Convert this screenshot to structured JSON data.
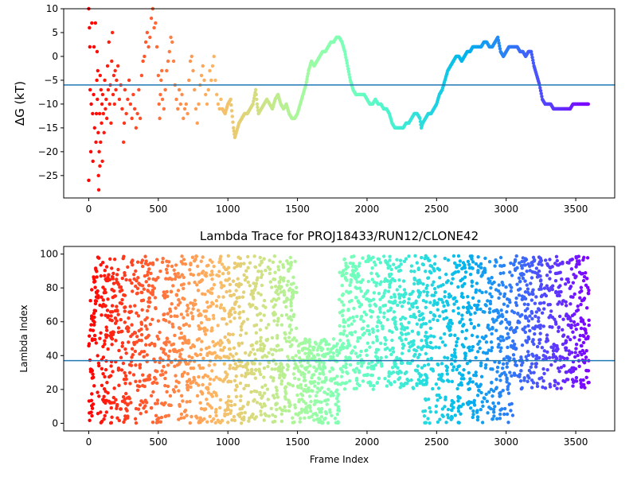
{
  "colors": {
    "hline": "#1f77b4",
    "spine": "#000000",
    "colormap": "rainbow"
  },
  "chart_data": [
    {
      "type": "scatter",
      "title": "",
      "xlabel": "",
      "ylabel": "ΔG (kT)",
      "xlim": [
        -180,
        3780
      ],
      "ylim": [
        -29.7,
        10.0
      ],
      "xticks": [
        0,
        500,
        1000,
        1500,
        2000,
        2500,
        3000,
        3500
      ],
      "xtick_labels": [
        "0",
        "500",
        "1000",
        "1500",
        "2000",
        "2500",
        "3000",
        "3500"
      ],
      "yticks": [
        -25,
        -20,
        -15,
        -10,
        -5,
        0,
        5,
        10
      ],
      "ytick_labels": [
        "−25",
        "−20",
        "−15",
        "−10",
        "−5",
        "0",
        "5",
        "10"
      ],
      "hline": -6.0,
      "color_by": "frame index (rainbow, red at frame 0 to violet at end)",
      "trace_points": [
        [
          0,
          10
        ],
        [
          0,
          -26
        ],
        [
          5,
          6
        ],
        [
          8,
          2
        ],
        [
          10,
          -7
        ],
        [
          15,
          -20
        ],
        [
          18,
          -10
        ],
        [
          22,
          7
        ],
        [
          28,
          -12
        ],
        [
          30,
          -22
        ],
        [
          35,
          -8
        ],
        [
          38,
          2
        ],
        [
          42,
          -15
        ],
        [
          48,
          7
        ],
        [
          52,
          -18
        ],
        [
          55,
          -12
        ],
        [
          58,
          -5
        ],
        [
          60,
          1
        ],
        [
          62,
          -9
        ],
        [
          65,
          -3
        ],
        [
          68,
          -16
        ],
        [
          70,
          -25
        ],
        [
          72,
          -28
        ],
        [
          75,
          -20
        ],
        [
          78,
          -12
        ],
        [
          80,
          -23
        ],
        [
          82,
          -4
        ],
        [
          85,
          -18
        ],
        [
          88,
          -7
        ],
        [
          92,
          -14
        ],
        [
          95,
          -10
        ],
        [
          98,
          -22
        ],
        [
          100,
          -8
        ],
        [
          105,
          -12
        ],
        [
          110,
          -16
        ],
        [
          115,
          -5
        ],
        [
          120,
          -11
        ],
        [
          125,
          -9
        ],
        [
          130,
          -13
        ],
        [
          135,
          -2
        ],
        [
          140,
          -7
        ],
        [
          145,
          3
        ],
        [
          150,
          -10
        ],
        [
          155,
          -6
        ],
        [
          160,
          -14
        ],
        [
          165,
          -1
        ],
        [
          170,
          5
        ],
        [
          175,
          -8
        ],
        [
          180,
          -4
        ],
        [
          185,
          -10
        ],
        [
          190,
          -3
        ],
        [
          195,
          -7
        ],
        [
          200,
          -5
        ],
        [
          210,
          -2
        ],
        [
          220,
          -9
        ],
        [
          230,
          -6
        ],
        [
          240,
          -11
        ],
        [
          250,
          -18
        ],
        [
          255,
          -14
        ],
        [
          260,
          -7
        ],
        [
          270,
          -12
        ],
        [
          280,
          -9
        ],
        [
          290,
          -5
        ],
        [
          300,
          -10
        ],
        [
          310,
          -13
        ],
        [
          320,
          -8
        ],
        [
          330,
          -11
        ],
        [
          340,
          -15
        ],
        [
          350,
          -12
        ],
        [
          360,
          -7
        ],
        [
          370,
          -13
        ],
        [
          380,
          -4
        ],
        [
          390,
          -1
        ],
        [
          400,
          0
        ],
        [
          410,
          3
        ],
        [
          420,
          5
        ],
        [
          430,
          2
        ],
        [
          440,
          4
        ],
        [
          450,
          8
        ],
        [
          460,
          10
        ],
        [
          470,
          6
        ],
        [
          480,
          7
        ],
        [
          490,
          2
        ],
        [
          500,
          -4
        ],
        [
          505,
          -10
        ],
        [
          510,
          -13
        ],
        [
          515,
          -8
        ],
        [
          520,
          -5
        ],
        [
          525,
          -3
        ],
        [
          530,
          -9
        ],
        [
          540,
          -11
        ],
        [
          550,
          -7
        ],
        [
          560,
          -3
        ],
        [
          570,
          -1
        ],
        [
          580,
          1
        ],
        [
          590,
          4
        ],
        [
          600,
          3
        ],
        [
          610,
          -1
        ],
        [
          620,
          -6
        ],
        [
          630,
          -9
        ],
        [
          640,
          -11
        ],
        [
          650,
          -7
        ],
        [
          660,
          -10
        ],
        [
          670,
          -8
        ],
        [
          680,
          -13
        ],
        [
          690,
          -11
        ],
        [
          700,
          -10
        ],
        [
          710,
          -12
        ],
        [
          720,
          -5
        ],
        [
          730,
          -1
        ],
        [
          740,
          0
        ],
        [
          750,
          -3
        ],
        [
          760,
          -7
        ],
        [
          770,
          -11
        ],
        [
          780,
          -14
        ],
        [
          790,
          -10
        ],
        [
          800,
          -6
        ],
        [
          810,
          -4
        ],
        [
          820,
          -2
        ],
        [
          830,
          -5
        ],
        [
          840,
          -8
        ],
        [
          850,
          -10
        ],
        [
          860,
          -7
        ],
        [
          870,
          -3
        ],
        [
          880,
          -5
        ],
        [
          890,
          -2
        ],
        [
          900,
          0
        ],
        [
          910,
          -5
        ],
        [
          920,
          -8
        ],
        [
          930,
          -10
        ],
        [
          940,
          -11
        ],
        [
          950,
          -9
        ],
        [
          960,
          -11
        ],
        [
          980,
          -12
        ],
        [
          1000,
          -10
        ],
        [
          1020,
          -9
        ],
        [
          1040,
          -15
        ],
        [
          1050,
          -17
        ],
        [
          1060,
          -16
        ],
        [
          1080,
          -14
        ],
        [
          1100,
          -13
        ],
        [
          1120,
          -12
        ],
        [
          1140,
          -12
        ],
        [
          1160,
          -11
        ],
        [
          1180,
          -10
        ],
        [
          1200,
          -7
        ],
        [
          1210,
          -10
        ],
        [
          1220,
          -12
        ],
        [
          1240,
          -11
        ],
        [
          1260,
          -10
        ],
        [
          1280,
          -9
        ],
        [
          1300,
          -10
        ],
        [
          1320,
          -11
        ],
        [
          1340,
          -9
        ],
        [
          1360,
          -8
        ],
        [
          1380,
          -10
        ],
        [
          1400,
          -11
        ],
        [
          1420,
          -10
        ],
        [
          1440,
          -12
        ],
        [
          1460,
          -13
        ],
        [
          1480,
          -13
        ],
        [
          1500,
          -12
        ],
        [
          1520,
          -10
        ],
        [
          1540,
          -8
        ],
        [
          1560,
          -6
        ],
        [
          1580,
          -3
        ],
        [
          1600,
          -1
        ],
        [
          1620,
          -2
        ],
        [
          1640,
          -1
        ],
        [
          1660,
          0
        ],
        [
          1680,
          1
        ],
        [
          1700,
          1
        ],
        [
          1720,
          2
        ],
        [
          1740,
          3
        ],
        [
          1760,
          3
        ],
        [
          1780,
          4
        ],
        [
          1800,
          4
        ],
        [
          1820,
          3
        ],
        [
          1840,
          1
        ],
        [
          1860,
          -2
        ],
        [
          1880,
          -5
        ],
        [
          1900,
          -7
        ],
        [
          1920,
          -8
        ],
        [
          1940,
          -8
        ],
        [
          1960,
          -8
        ],
        [
          1980,
          -8
        ],
        [
          2000,
          -9
        ],
        [
          2020,
          -10
        ],
        [
          2040,
          -10
        ],
        [
          2060,
          -9
        ],
        [
          2080,
          -10
        ],
        [
          2100,
          -10
        ],
        [
          2120,
          -11
        ],
        [
          2140,
          -11
        ],
        [
          2160,
          -12
        ],
        [
          2180,
          -14
        ],
        [
          2200,
          -15
        ],
        [
          2220,
          -15
        ],
        [
          2240,
          -15
        ],
        [
          2260,
          -15
        ],
        [
          2280,
          -14
        ],
        [
          2300,
          -14
        ],
        [
          2320,
          -13
        ],
        [
          2340,
          -12
        ],
        [
          2360,
          -12
        ],
        [
          2380,
          -13
        ],
        [
          2390,
          -15
        ],
        [
          2400,
          -14
        ],
        [
          2420,
          -13
        ],
        [
          2440,
          -12
        ],
        [
          2460,
          -12
        ],
        [
          2480,
          -11
        ],
        [
          2500,
          -10
        ],
        [
          2520,
          -8
        ],
        [
          2540,
          -7
        ],
        [
          2560,
          -5
        ],
        [
          2580,
          -3
        ],
        [
          2600,
          -2
        ],
        [
          2620,
          -1
        ],
        [
          2640,
          0
        ],
        [
          2660,
          0
        ],
        [
          2680,
          -1
        ],
        [
          2700,
          0
        ],
        [
          2720,
          1
        ],
        [
          2740,
          1
        ],
        [
          2760,
          2
        ],
        [
          2780,
          2
        ],
        [
          2800,
          2
        ],
        [
          2820,
          2
        ],
        [
          2840,
          3
        ],
        [
          2860,
          3
        ],
        [
          2880,
          2
        ],
        [
          2900,
          2
        ],
        [
          2920,
          3
        ],
        [
          2940,
          4
        ],
        [
          2960,
          1
        ],
        [
          2980,
          0
        ],
        [
          3000,
          1
        ],
        [
          3020,
          2
        ],
        [
          3040,
          2
        ],
        [
          3060,
          2
        ],
        [
          3080,
          2
        ],
        [
          3100,
          1
        ],
        [
          3120,
          1
        ],
        [
          3140,
          0
        ],
        [
          3160,
          1
        ],
        [
          3180,
          1
        ],
        [
          3200,
          -2
        ],
        [
          3220,
          -4
        ],
        [
          3240,
          -6
        ],
        [
          3260,
          -9
        ],
        [
          3280,
          -10
        ],
        [
          3300,
          -10
        ],
        [
          3320,
          -10
        ],
        [
          3340,
          -11
        ],
        [
          3360,
          -11
        ],
        [
          3380,
          -11
        ],
        [
          3400,
          -11
        ],
        [
          3420,
          -11
        ],
        [
          3440,
          -11
        ],
        [
          3460,
          -11
        ],
        [
          3480,
          -10
        ],
        [
          3500,
          -10
        ],
        [
          3520,
          -10
        ],
        [
          3540,
          -10
        ],
        [
          3560,
          -10
        ],
        [
          3580,
          -10
        ],
        [
          3590,
          -10
        ]
      ]
    },
    {
      "type": "scatter",
      "title": "Lambda Trace for PROJ18433/RUN12/CLONE42",
      "xlabel": "Frame Index",
      "ylabel": "Lambda Index",
      "xlim": [
        -180,
        3780
      ],
      "ylim": [
        -4.5,
        104.5
      ],
      "xticks": [
        0,
        500,
        1000,
        1500,
        2000,
        2500,
        3000,
        3500
      ],
      "xtick_labels": [
        "0",
        "500",
        "1000",
        "1500",
        "2000",
        "2500",
        "3000",
        "3500"
      ],
      "yticks": [
        0,
        20,
        40,
        60,
        80,
        100
      ],
      "ytick_labels": [
        "0",
        "20",
        "40",
        "60",
        "80",
        "100"
      ],
      "hline": 37,
      "color_by": "frame index (rainbow, red at frame 0 to violet at end)",
      "density_regions": [
        {
          "x_range": [
            0,
            1500
          ],
          "y_range": [
            0,
            99
          ],
          "description": "points scattered across full lambda range"
        },
        {
          "x_range": [
            1500,
            1800
          ],
          "y_range": [
            0,
            50
          ],
          "description": "points concentrated at low lambda"
        },
        {
          "x_range": [
            1800,
            2200
          ],
          "y_range": [
            20,
            99
          ],
          "description": "points concentrated at high lambda"
        },
        {
          "x_range": [
            2200,
            2400
          ],
          "y_range": [
            20,
            99
          ],
          "description": "sparse mid to high lambda"
        },
        {
          "x_range": [
            2400,
            3050
          ],
          "y_range": [
            0,
            99
          ],
          "description": "dense at low lambda, rising toward high lambda"
        },
        {
          "x_range": [
            3050,
            3600
          ],
          "y_range": [
            20,
            99
          ],
          "description": "concentrated at high lambda, dipping to 30-60 near end"
        }
      ]
    }
  ]
}
